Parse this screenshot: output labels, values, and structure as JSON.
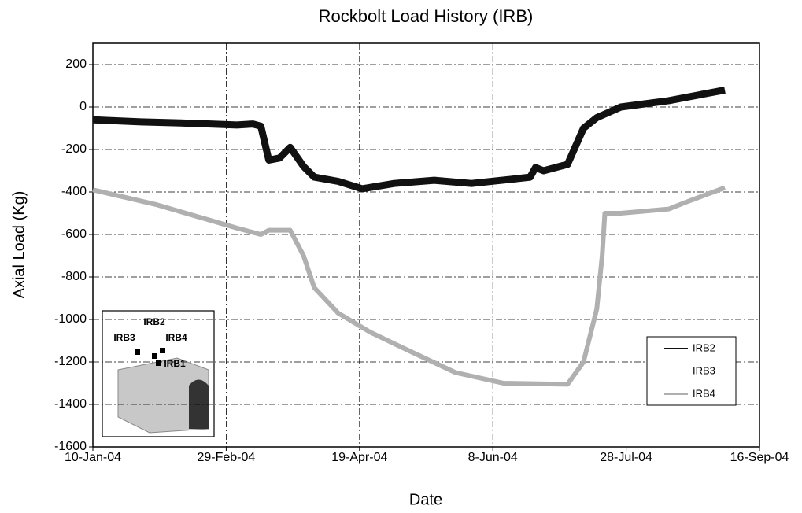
{
  "chart_data": {
    "type": "line",
    "title": "Rockbolt Load History (IRB)",
    "x_label": "Date",
    "y_label": "Axial Load (Kg)",
    "xlim": [
      37996,
      38246
    ],
    "xticks": [
      {
        "value": 37996,
        "label": "10-Jan-04"
      },
      {
        "value": 38046,
        "label": "29-Feb-04"
      },
      {
        "value": 38096,
        "label": "19-Apr-04"
      },
      {
        "value": 38146,
        "label": "8-Jun-04"
      },
      {
        "value": 38196,
        "label": "28-Jul-04"
      },
      {
        "value": 38246,
        "label": "16-Sep-04"
      }
    ],
    "ylim": [
      -1600,
      300
    ],
    "yticks": [
      -1600,
      -1400,
      -1200,
      -1000,
      -800,
      -600,
      -400,
      -200,
      0,
      200
    ],
    "grid": true,
    "legend": "lower right",
    "series": [
      {
        "name": "IRB2",
        "color": "#111111",
        "x": [
          37996,
          38014,
          38029,
          38050,
          38056,
          38059,
          38062,
          38066,
          38070,
          38075,
          38079,
          38088,
          38097,
          38109,
          38124,
          38138,
          38153,
          38160,
          38162,
          38165,
          38174,
          38180,
          38185,
          38194,
          38212,
          38233
        ],
        "values": [
          -60,
          -70,
          -75,
          -85,
          -80,
          -90,
          -250,
          -240,
          -190,
          -280,
          -330,
          -350,
          -385,
          -360,
          -345,
          -360,
          -340,
          -330,
          -285,
          -300,
          -270,
          -100,
          -50,
          0,
          30,
          80
        ]
      },
      {
        "name": "IRB3",
        "color": "#ffffff",
        "x": [],
        "values": []
      },
      {
        "name": "IRB4",
        "color": "#b0b0b0",
        "x": [
          37996,
          38020,
          38050,
          38059,
          38062,
          38070,
          38075,
          38079,
          38088,
          38100,
          38115,
          38132,
          38150,
          38174,
          38180,
          38185,
          38187,
          38188,
          38194,
          38212,
          38218,
          38233
        ],
        "values": [
          -390,
          -460,
          -570,
          -600,
          -580,
          -580,
          -700,
          -850,
          -970,
          -1060,
          -1150,
          -1250,
          -1300,
          -1305,
          -1200,
          -950,
          -700,
          -500,
          -500,
          -480,
          -450,
          -380
        ]
      }
    ],
    "inset_labels": [
      "IRB3",
      "IRB2",
      "IRB4",
      "IRB1"
    ]
  }
}
